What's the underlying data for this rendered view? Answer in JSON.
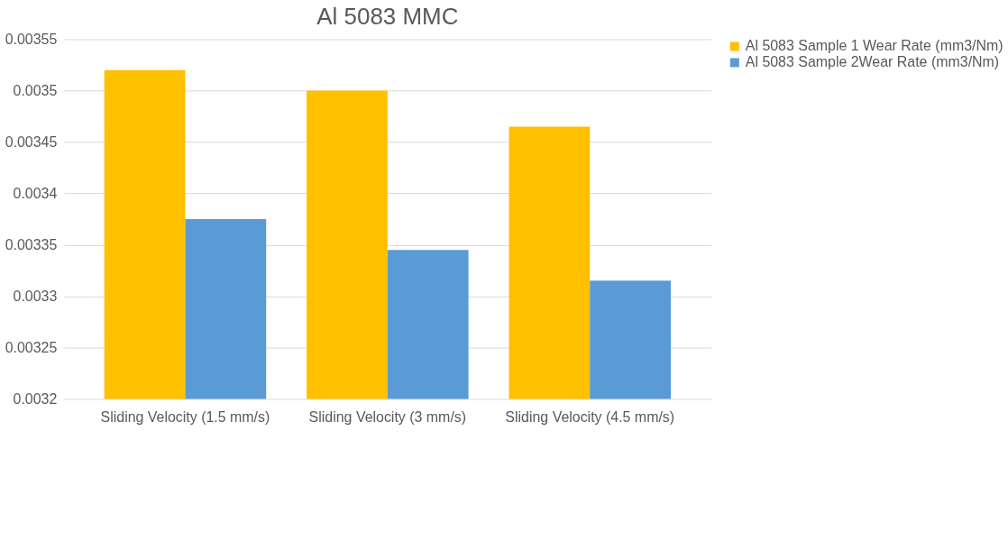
{
  "chart_data": {
    "type": "bar",
    "title": "Al 5083 MMC",
    "categories": [
      "Sliding Velocity (1.5 mm/s)",
      "Sliding Velocity (3 mm/s)",
      "Sliding Velocity (4.5 mm/s)"
    ],
    "series": [
      {
        "name": "Al 5083 Sample 1 Wear Rate (mm3/Nm)",
        "color": "#ffc000",
        "values": [
          0.00352,
          0.0035,
          0.003465
        ]
      },
      {
        "name": "Al 5083 Sample 2Wear Rate (mm3/Nm)",
        "color": "#5b9bd5",
        "values": [
          0.003375,
          0.003345,
          0.003315
        ]
      }
    ],
    "ylim": [
      0.0032,
      0.00355
    ],
    "yticks": [
      0.0032,
      0.00325,
      0.0033,
      0.00335,
      0.0034,
      0.00345,
      0.0035,
      0.00355
    ],
    "grid": "y",
    "legend": "right"
  }
}
